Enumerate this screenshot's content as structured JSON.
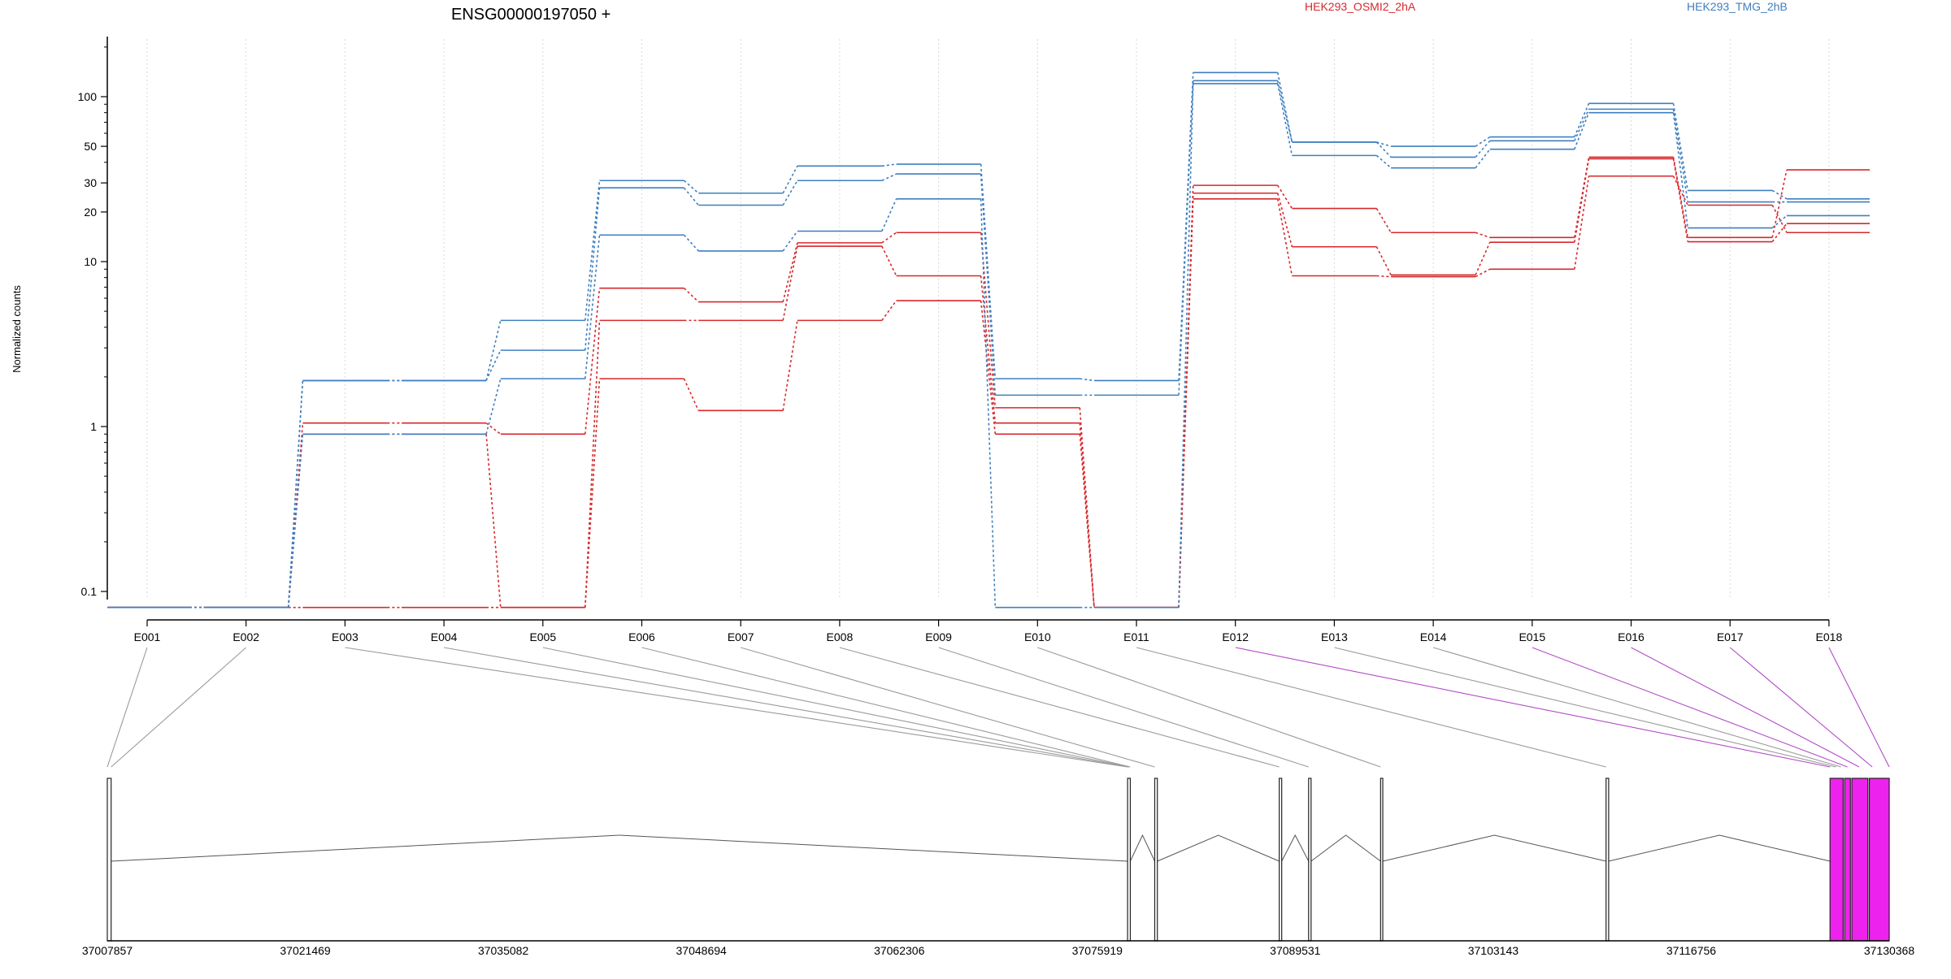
{
  "chart_data": {
    "type": "line",
    "title": "ENSG00000197050 +",
    "ylabel": "Normalized counts",
    "xlabel": "",
    "y_scale": "log",
    "ylim": [
      0.08,
      220
    ],
    "y_ticks": [
      "0.1",
      "1",
      "10",
      "20",
      "30",
      "50",
      "100"
    ],
    "y_tick_values": [
      0.1,
      1,
      10,
      20,
      30,
      50,
      100
    ],
    "categories": [
      "E001",
      "E002",
      "E003",
      "E004",
      "E005",
      "E006",
      "E007",
      "E008",
      "E009",
      "E010",
      "E011",
      "E012",
      "E013",
      "E014",
      "E015",
      "E016",
      "E017",
      "E018"
    ],
    "grid": "vertical dotted",
    "legend": [
      {
        "name": "HEK293_OSMI2_2hA",
        "color": "#d7282b",
        "placement": "top-center"
      },
      {
        "name": "HEK293_TMG_2hB",
        "color": "#3f7fbf",
        "placement": "top-right"
      }
    ],
    "series": [
      {
        "group": "HEK293_OSMI2_2hA",
        "color": "#d7282b",
        "values": [
          0.08,
          0.08,
          1.05,
          1.05,
          0.9,
          6.9,
          5.7,
          13.0,
          15.0,
          1.3,
          0.08,
          29,
          21,
          15,
          14,
          43,
          14,
          36
        ]
      },
      {
        "group": "HEK293_OSMI2_2hA",
        "color": "#d7282b",
        "values": [
          0.08,
          0.08,
          0.9,
          0.9,
          0.08,
          4.4,
          4.4,
          12.4,
          8.2,
          1.05,
          0.08,
          26,
          12.3,
          8.3,
          13.1,
          42,
          13.2,
          17
        ]
      },
      {
        "group": "HEK293_OSMI2_2hA",
        "color": "#d7282b",
        "values": [
          0.08,
          0.08,
          0.08,
          0.08,
          0.08,
          1.95,
          1.25,
          4.4,
          5.8,
          0.9,
          0.08,
          24,
          8.2,
          8.1,
          9.0,
          33,
          22,
          15
        ]
      },
      {
        "group": "HEK293_TMG_2hB",
        "color": "#3f7fbf",
        "values": [
          0.08,
          0.08,
          1.9,
          1.9,
          4.4,
          31,
          26,
          38,
          39,
          1.95,
          1.9,
          140,
          53,
          50,
          57,
          91,
          27,
          24
        ]
      },
      {
        "group": "HEK293_TMG_2hB",
        "color": "#3f7fbf",
        "values": [
          0.08,
          0.08,
          1.9,
          1.9,
          2.9,
          28,
          22,
          31,
          34,
          1.55,
          1.55,
          125,
          53,
          43,
          54,
          84,
          23,
          23
        ]
      },
      {
        "group": "HEK293_TMG_2hB",
        "color": "#3f7fbf",
        "values": [
          0.08,
          0.08,
          0.9,
          0.9,
          1.95,
          14.5,
          11.6,
          15.3,
          24,
          0.08,
          0.08,
          120,
          44,
          37,
          48,
          80,
          16,
          19
        ]
      }
    ]
  },
  "gene_model": {
    "coordinate_ticks": [
      "37007857",
      "37021469",
      "37035082",
      "37048694",
      "37062306",
      "37075919",
      "37089531",
      "37103143",
      "37116756",
      "37130368"
    ],
    "coordinate_range": [
      37007857,
      37130368
    ],
    "highlight_color": "#ee22ee",
    "exons": [
      {
        "start": 37007857,
        "end": 37008120,
        "highlighted": false
      },
      {
        "start": 37078003,
        "end": 37078190,
        "highlighted": false
      },
      {
        "start": 37079870,
        "end": 37080050,
        "highlighted": false
      },
      {
        "start": 37088430,
        "end": 37088600,
        "highlighted": false
      },
      {
        "start": 37090450,
        "end": 37090620,
        "highlighted": false
      },
      {
        "start": 37095400,
        "end": 37095550,
        "highlighted": false
      },
      {
        "start": 37110900,
        "end": 37111080,
        "highlighted": false
      },
      {
        "start": 37126300,
        "end": 37127200,
        "highlighted": true
      },
      {
        "start": 37127300,
        "end": 37127700,
        "highlighted": true
      },
      {
        "start": 37127800,
        "end": 37128900,
        "highlighted": true
      },
      {
        "start": 37129000,
        "end": 37130368,
        "highlighted": true
      }
    ],
    "bin_links": [
      {
        "bin": "E001",
        "coord": 37007857,
        "highlighted": false
      },
      {
        "bin": "E002",
        "coord": 37008120,
        "highlighted": false
      },
      {
        "bin": "E003",
        "coord": 37078003,
        "highlighted": false
      },
      {
        "bin": "E004",
        "coord": 37078060,
        "highlighted": false
      },
      {
        "bin": "E005",
        "coord": 37078120,
        "highlighted": false
      },
      {
        "bin": "E006",
        "coord": 37078190,
        "highlighted": false
      },
      {
        "bin": "E007",
        "coord": 37079870,
        "highlighted": false
      },
      {
        "bin": "E008",
        "coord": 37088430,
        "highlighted": false
      },
      {
        "bin": "E009",
        "coord": 37090450,
        "highlighted": false
      },
      {
        "bin": "E010",
        "coord": 37095400,
        "highlighted": false
      },
      {
        "bin": "E011",
        "coord": 37110900,
        "highlighted": false
      },
      {
        "bin": "E012",
        "coord": 37126300,
        "highlighted": true
      },
      {
        "bin": "E013",
        "coord": 37126700,
        "highlighted": false
      },
      {
        "bin": "E014",
        "coord": 37127050,
        "highlighted": false
      },
      {
        "bin": "E015",
        "coord": 37127500,
        "highlighted": true
      },
      {
        "bin": "E016",
        "coord": 37128300,
        "highlighted": true
      },
      {
        "bin": "E017",
        "coord": 37129200,
        "highlighted": true
      },
      {
        "bin": "E018",
        "coord": 37130368,
        "highlighted": true
      }
    ]
  }
}
